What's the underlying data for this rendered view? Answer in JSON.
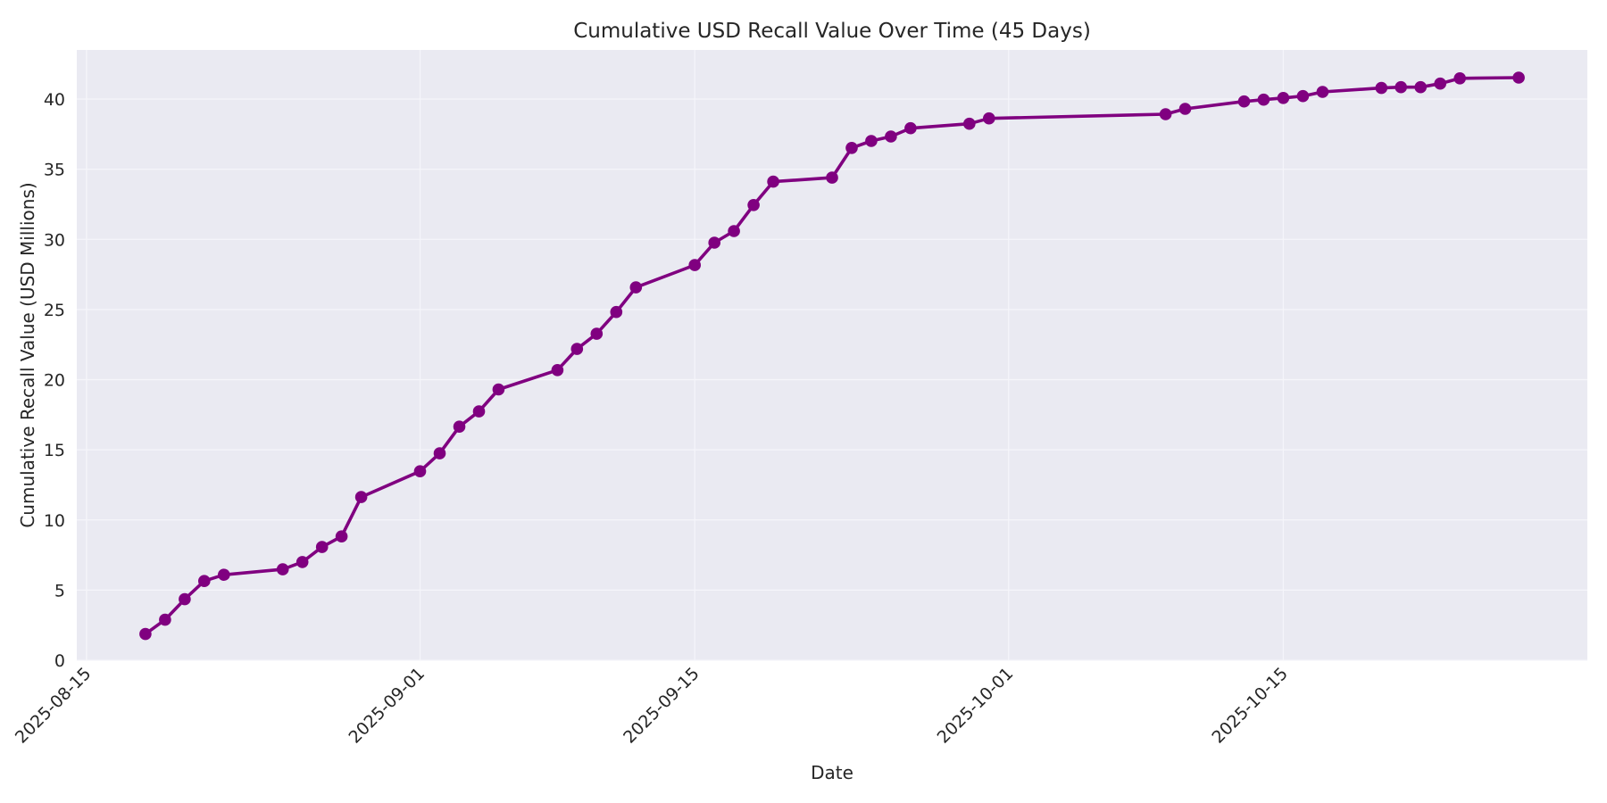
{
  "chart_data": {
    "type": "line",
    "title": "Cumulative USD Recall Value Over Time (45 Days)",
    "xlabel": "Date",
    "ylabel": "Cumulative Recall Value (USD Millions)",
    "ylim": [
      0,
      43.5
    ],
    "xlim": [
      "2025-08-14T12:00",
      "2025-10-30T12:00"
    ],
    "grid": true,
    "legend": null,
    "x_ticks": [
      "2025-08-15",
      "2025-09-01",
      "2025-09-15",
      "2025-10-01",
      "2025-10-15"
    ],
    "y_ticks": [
      0,
      5,
      10,
      15,
      20,
      25,
      30,
      35,
      40
    ],
    "style": {
      "line_color": "#800080",
      "marker": "circle",
      "background": "#eaeaf2",
      "grid_color": "#f5f5fa"
    },
    "series": [
      {
        "name": "Cumulative Recall Value",
        "x": [
          "2025-08-18",
          "2025-08-19",
          "2025-08-20",
          "2025-08-21",
          "2025-08-22",
          "2025-08-25",
          "2025-08-26",
          "2025-08-27",
          "2025-08-28",
          "2025-08-29",
          "2025-09-01",
          "2025-09-02",
          "2025-09-03",
          "2025-09-04",
          "2025-09-05",
          "2025-09-08",
          "2025-09-09",
          "2025-09-10",
          "2025-09-11",
          "2025-09-12",
          "2025-09-15",
          "2025-09-16",
          "2025-09-17",
          "2025-09-18",
          "2025-09-19",
          "2025-09-22",
          "2025-09-23",
          "2025-09-24",
          "2025-09-25",
          "2025-09-26",
          "2025-09-29",
          "2025-09-30",
          "2025-10-09",
          "2025-10-10",
          "2025-10-13",
          "2025-10-14",
          "2025-10-15",
          "2025-10-16",
          "2025-10-17",
          "2025-10-20",
          "2025-10-21",
          "2025-10-22",
          "2025-10-23",
          "2025-10-24",
          "2025-10-27"
        ],
        "values": [
          1.87,
          2.89,
          4.35,
          5.65,
          6.09,
          6.48,
          7.0,
          8.07,
          8.83,
          11.63,
          13.47,
          14.75,
          16.65,
          17.74,
          19.3,
          20.68,
          22.19,
          23.27,
          24.82,
          26.58,
          28.17,
          29.76,
          30.59,
          32.45,
          34.11,
          34.4,
          36.52,
          37.01,
          37.33,
          37.92,
          38.24,
          38.62,
          38.92,
          39.3,
          39.83,
          39.96,
          40.08,
          40.21,
          40.51,
          40.79,
          40.85,
          40.85,
          41.1,
          41.48,
          41.53
        ]
      }
    ]
  }
}
